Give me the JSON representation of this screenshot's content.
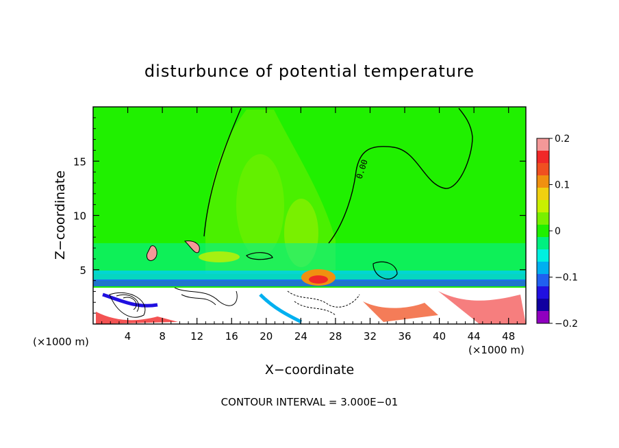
{
  "chart_data": {
    "type": "heatmap",
    "title": "disturbunce of potential temperature",
    "xlabel": "X−coordinate",
    "ylabel": "Z−coordinate",
    "x_unit_left": "(×1000 m)",
    "x_unit_right": "(×1000 m)",
    "footer": "CONTOUR INTERVAL = 3.000E−01",
    "xlim": [
      0,
      50
    ],
    "ylim": [
      0,
      20
    ],
    "x_ticks": [
      4,
      8,
      12,
      16,
      20,
      24,
      28,
      32,
      36,
      40,
      44,
      48
    ],
    "x_tick_labels": [
      "4",
      "8",
      "12",
      "16",
      "20",
      "24",
      "28",
      "32",
      "36",
      "40",
      "44",
      "48"
    ],
    "y_ticks": [
      5,
      10,
      15
    ],
    "y_tick_labels": [
      "5",
      "10",
      "15"
    ],
    "contour_label": "0.00",
    "colorbar": {
      "range": [
        -0.2,
        0.2
      ],
      "tick_values": [
        0.2,
        0.1,
        0,
        -0.1,
        -0.2
      ],
      "tick_labels": [
        "0.2",
        "0.1",
        "0",
        "−0.1",
        "−0.2"
      ],
      "colors": [
        "#f49898",
        "#f02828",
        "#f05020",
        "#f09010",
        "#f0d010",
        "#c8f000",
        "#78f000",
        "#20f000",
        "#00f080",
        "#00f0e0",
        "#00b0f0",
        "#2060f0",
        "#2010e0",
        "#1000a0",
        "#9000c0"
      ]
    },
    "background_color": "#20f000",
    "lowlevel_color": "#ffffff"
  }
}
